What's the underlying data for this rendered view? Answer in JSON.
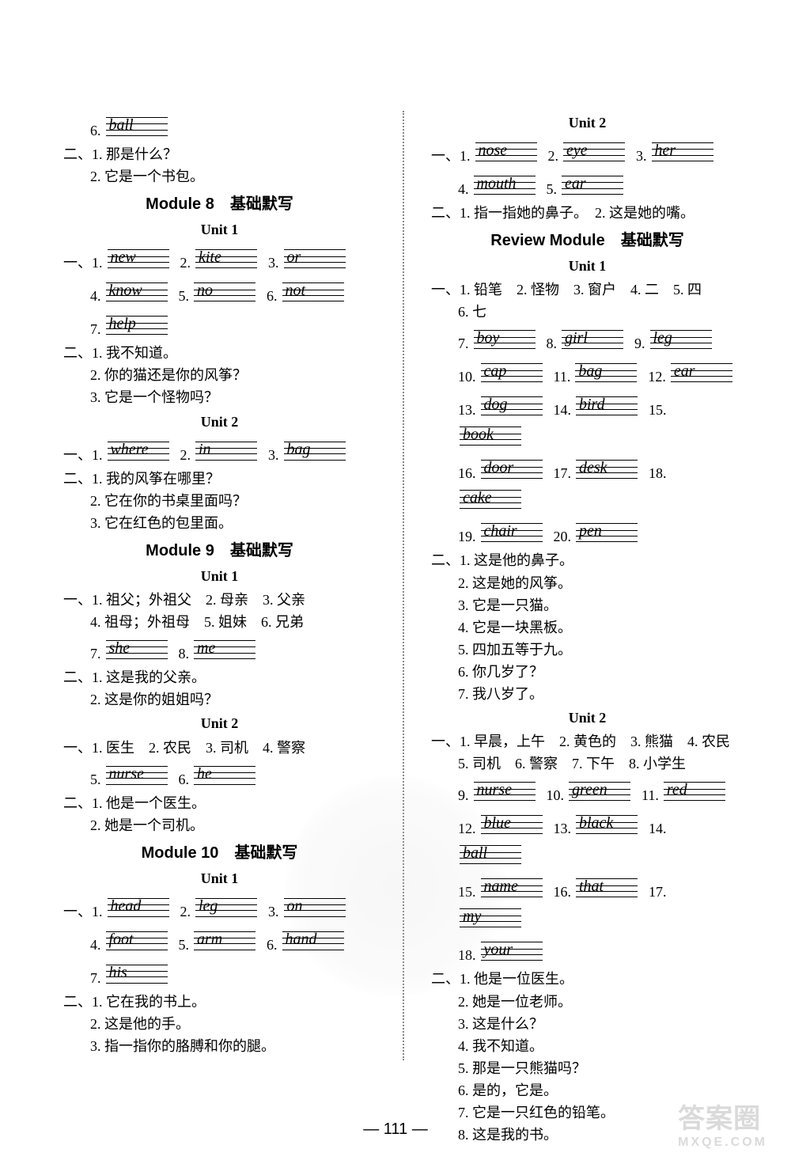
{
  "pageNumber": "— 111 —",
  "watermark": {
    "main": "答案圈",
    "sub": "MXQE.COM"
  },
  "left": {
    "pre": {
      "six": "6.",
      "sixWord": "ball",
      "er": "二、",
      "l1": "1. 那是什么？",
      "l2": "2. 它是一个书包。"
    },
    "m8": {
      "title": "Module 8　基础默写",
      "u1": {
        "title": "Unit 1",
        "yi": "一、",
        "p1n": "1.",
        "p1w": "new",
        "p2n": "2.",
        "p2w": "kite",
        "p3n": "3.",
        "p3w": "or",
        "p4n": "4.",
        "p4w": "know",
        "p5n": "5.",
        "p5w": "no",
        "p6n": "6.",
        "p6w": "not",
        "p7n": "7.",
        "p7w": "help",
        "er": "二、",
        "l1": "1. 我不知道。",
        "l2": "2. 你的猫还是你的风筝？",
        "l3": "3. 它是一个怪物吗？"
      },
      "u2": {
        "title": "Unit 2",
        "yi": "一、",
        "p1n": "1.",
        "p1w": "where",
        "p2n": "2.",
        "p2w": "in",
        "p3n": "3.",
        "p3w": "bag",
        "er": "二、",
        "l1": "1. 我的风筝在哪里？",
        "l2": "2. 它在你的书桌里面吗？",
        "l3": "3. 它在红色的包里面。"
      }
    },
    "m9": {
      "title": "Module 9　基础默写",
      "u1": {
        "title": "Unit 1",
        "yi": "一、",
        "l1": "1. 祖父；外祖父　2. 母亲　3. 父亲",
        "l2": "4. 祖母；外祖母　5. 姐妹　6. 兄弟",
        "p7n": "7.",
        "p7w": "she",
        "p8n": "8.",
        "p8w": "me",
        "er": "二、",
        "el1": "1. 这是我的父亲。",
        "el2": "2. 这是你的姐姐吗？"
      },
      "u2": {
        "title": "Unit 2",
        "yi": "一、",
        "l1": "1. 医生　2. 农民　3. 司机　4. 警察",
        "p5n": "5.",
        "p5w": "nurse",
        "p6n": "6.",
        "p6w": "he",
        "er": "二、",
        "el1": "1. 他是一个医生。",
        "el2": "2. 她是一个司机。"
      }
    },
    "m10": {
      "title": "Module 10　基础默写",
      "u1": {
        "title": "Unit 1",
        "yi": "一、",
        "p1n": "1.",
        "p1w": "head",
        "p2n": "2.",
        "p2w": "leg",
        "p3n": "3.",
        "p3w": "on",
        "p4n": "4.",
        "p4w": "foot",
        "p5n": "5.",
        "p5w": "arm",
        "p6n": "6.",
        "p6w": "hand",
        "p7n": "7.",
        "p7w": "his",
        "er": "二、",
        "el1": "1. 它在我的书上。",
        "el2": "2. 这是他的手。",
        "el3": "3. 指一指你的胳膊和你的腿。"
      }
    }
  },
  "right": {
    "u2top": {
      "title": "Unit 2",
      "yi": "一、",
      "p1n": "1.",
      "p1w": "nose",
      "p2n": "2.",
      "p2w": "eye",
      "p3n": "3.",
      "p3w": "her",
      "p4n": "4.",
      "p4w": "mouth",
      "p5n": "5.",
      "p5w": "ear",
      "er": "二、",
      "el1": "1. 指一指她的鼻子。　2. 这是她的嘴。"
    },
    "rm": {
      "title": "Review Module　基础默写",
      "u1": {
        "title": "Unit 1",
        "yi": "一、",
        "l1": "1. 铅笔　2. 怪物　3. 窗户　4. 二　5. 四",
        "l2": "6. 七",
        "p7n": "7.",
        "p7w": "boy",
        "p8n": "8.",
        "p8w": "girl",
        "p9n": "9.",
        "p9w": "leg",
        "p10n": "10.",
        "p10w": "cap",
        "p11n": "11.",
        "p11w": "bag",
        "p12n": "12.",
        "p12w": "ear",
        "p13n": "13.",
        "p13w": "dog",
        "p14n": "14.",
        "p14w": "bird",
        "p15n": "15.",
        "p15w": "book",
        "p16n": "16.",
        "p16w": "door",
        "p17n": "17.",
        "p17w": "desk",
        "p18n": "18.",
        "p18w": "cake",
        "p19n": "19.",
        "p19w": "chair",
        "p20n": "20.",
        "p20w": "pen",
        "er": "二、",
        "el1": "1. 这是他的鼻子。",
        "el2": "2. 这是她的风筝。",
        "el3": "3. 它是一只猫。",
        "el4": "4. 它是一块黑板。",
        "el5": "5. 四加五等于九。",
        "el6": "6. 你几岁了？",
        "el7": "7. 我八岁了。"
      },
      "u2": {
        "title": "Unit 2",
        "yi": "一、",
        "l1": "1. 早晨，上午　2. 黄色的　3. 熊猫　4. 农民",
        "l2": "5. 司机　6. 警察　7. 下午　8. 小学生",
        "p9n": "9.",
        "p9w": "nurse",
        "p10n": "10.",
        "p10w": "green",
        "p11n": "11.",
        "p11w": "red",
        "p12n": "12.",
        "p12w": "blue",
        "p13n": "13.",
        "p13w": "black",
        "p14n": "14.",
        "p14w": "ball",
        "p15n": "15.",
        "p15w": "name",
        "p16n": "16.",
        "p16w": "that",
        "p17n": "17.",
        "p17w": "my",
        "p18n": "18.",
        "p18w": "your",
        "er": "二、",
        "el1": "1. 他是一位医生。",
        "el2": "2. 她是一位老师。",
        "el3": "3. 这是什么？",
        "el4": "4. 我不知道。",
        "el5": "5. 那是一只熊猫吗？",
        "el6": "6. 是的，它是。",
        "el7": "7. 它是一只红色的铅笔。",
        "el8": "8. 这是我的书。"
      }
    }
  }
}
